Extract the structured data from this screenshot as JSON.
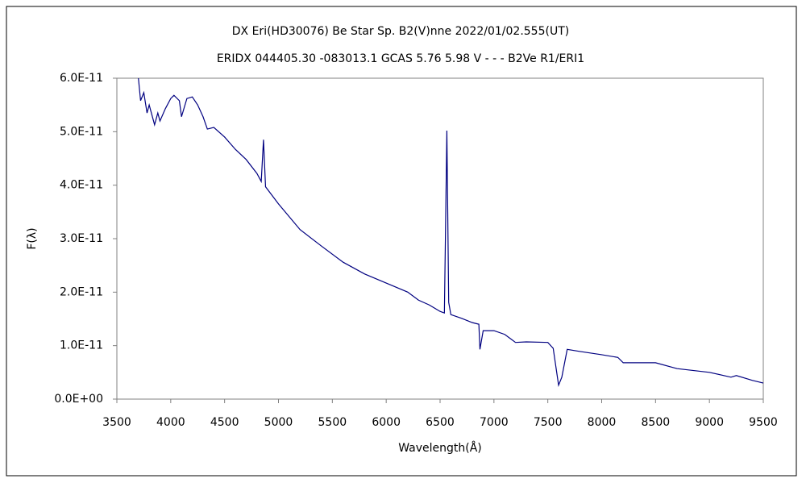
{
  "chart_data": {
    "type": "line",
    "title": "DX Eri(HD30076)   Be Star   Sp. B2(V)nne   2022/01/02.555(UT)",
    "subtitle": "ERIDX 044405.30 -083013.1 GCAS 5.76 5.98 V - - - B2Ve R1/ERI1",
    "x_label": "Wavelength(Å)",
    "y_label": "F(λ)",
    "xlim": [
      3500,
      9500
    ],
    "xticks": [
      3500,
      4000,
      4500,
      5000,
      5500,
      6000,
      6500,
      7000,
      7500,
      8000,
      8500,
      9000,
      9500
    ],
    "ylim": [
      0,
      6e-11
    ],
    "yticks": [
      {
        "value": 0,
        "label": "0.0E+00"
      },
      {
        "value": 1e-11,
        "label": "1.0E-11"
      },
      {
        "value": 2e-11,
        "label": "2.0E-11"
      },
      {
        "value": 3e-11,
        "label": "3.0E-11"
      },
      {
        "value": 4e-11,
        "label": "4.0E-11"
      },
      {
        "value": 5e-11,
        "label": "5.0E-11"
      },
      {
        "value": 6e-11,
        "label": "6.0E-11"
      }
    ],
    "grid": false,
    "series": [
      {
        "color": "#000080",
        "x": [
          3700,
          3720,
          3750,
          3780,
          3800,
          3850,
          3880,
          3900,
          3950,
          4000,
          4030,
          4080,
          4100,
          4150,
          4200,
          4250,
          4300,
          4340,
          4400,
          4500,
          4600,
          4700,
          4800,
          4840,
          4861,
          4880,
          5000,
          5200,
          5400,
          5600,
          5800,
          6000,
          6200,
          6300,
          6400,
          6500,
          6540,
          6563,
          6580,
          6600,
          6700,
          6800,
          6860,
          6870,
          6900,
          7000,
          7100,
          7200,
          7300,
          7500,
          7550,
          7600,
          7630,
          7680,
          7800,
          8000,
          8150,
          8200,
          8500,
          8700,
          9000,
          9200,
          9250,
          9400,
          9500
        ],
        "values": [
          6e-11,
          5.58e-11,
          5.73e-11,
          5.35e-11,
          5.5e-11,
          5.13e-11,
          5.35e-11,
          5.2e-11,
          5.43e-11,
          5.62e-11,
          5.68e-11,
          5.58e-11,
          5.28e-11,
          5.62e-11,
          5.65e-11,
          5.5e-11,
          5.28e-11,
          5.05e-11,
          5.08e-11,
          4.9e-11,
          4.67e-11,
          4.48e-11,
          4.22e-11,
          4.07e-11,
          4.85e-11,
          3.97e-11,
          3.65e-11,
          3.17e-11,
          2.86e-11,
          2.56e-11,
          2.34e-11,
          2.17e-11,
          2e-11,
          1.85e-11,
          1.76e-11,
          1.64e-11,
          1.61e-11,
          5.02e-11,
          1.81e-11,
          1.58e-11,
          1.51e-11,
          1.43e-11,
          1.4e-11,
          9.3e-12,
          1.28e-11,
          1.28e-11,
          1.21e-11,
          1.06e-11,
          1.07e-11,
          1.06e-11,
          9.5e-12,
          2.6e-12,
          4.1e-12,
          9.3e-12,
          8.9e-12,
          8.3e-12,
          7.8e-12,
          6.8e-12,
          6.8e-12,
          5.7e-12,
          5e-12,
          4.1e-12,
          4.4e-12,
          3.5e-12,
          3e-12
        ]
      }
    ]
  }
}
